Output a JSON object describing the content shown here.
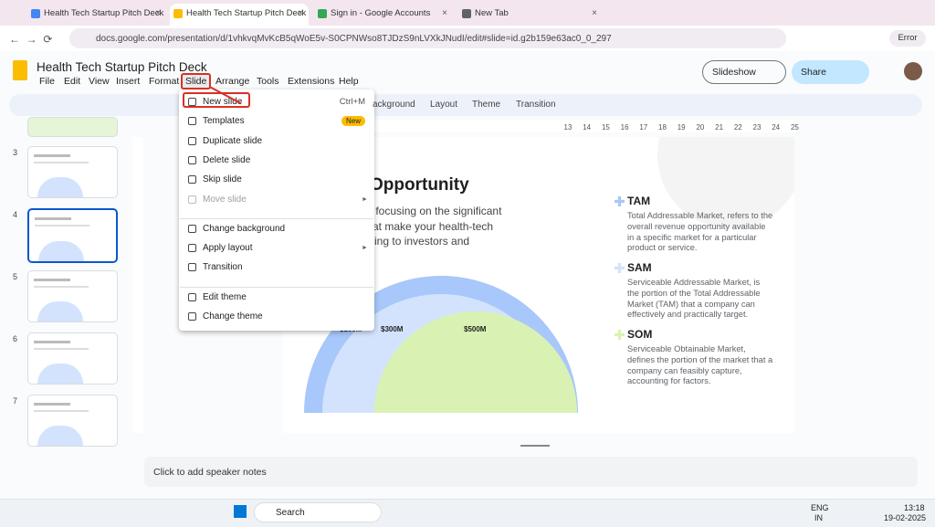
{
  "browser": {
    "tabs": [
      {
        "title": "Health Tech Startup Pitch Deck",
        "active": false,
        "color": "#4285f4"
      },
      {
        "title": "Health Tech Startup Pitch Deck",
        "active": true,
        "color": "#fbbc04"
      },
      {
        "title": "Sign in - Google Accounts",
        "active": false,
        "color": "#34a853"
      },
      {
        "title": "New Tab",
        "active": false,
        "color": "#5f6368"
      }
    ],
    "url": "docs.google.com/presentation/d/1vhkvqMvKcB5qWoE5v-S0CPNWso8TJDzS9nLVXkJNudI/edit#slide=id.g2b159e63ac0_0_297",
    "profile_status": "Error"
  },
  "header": {
    "title": "Health Tech Startup Pitch Deck",
    "menus": [
      "File",
      "Edit",
      "View",
      "Insert",
      "Format",
      "Slide",
      "Arrange",
      "Tools",
      "Extensions",
      "Help"
    ],
    "selected_menu": 5,
    "slideshow": "Slideshow",
    "share": "Share"
  },
  "toolbar": {
    "items": [
      "ackground",
      "Layout",
      "Theme",
      "Transition"
    ]
  },
  "ruler": {
    "labels": [
      13,
      14,
      15,
      16,
      17,
      18,
      19,
      20,
      21,
      22,
      23,
      24,
      25
    ]
  },
  "filmstrip": {
    "numbers": [
      3,
      4,
      5,
      6,
      7
    ],
    "active": 1
  },
  "slide_menu": {
    "items": [
      {
        "label": "New slide",
        "shortcut": "Ctrl+M",
        "highlighted": true
      },
      {
        "label": "Templates",
        "badge": "New"
      },
      {
        "label": "Duplicate slide"
      },
      {
        "label": "Delete slide"
      },
      {
        "label": "Skip slide"
      },
      {
        "label": "Move slide",
        "disabled": true,
        "submenu": true
      },
      {
        "label": "Change background",
        "section_start": true
      },
      {
        "label": "Apply layout",
        "submenu": true
      },
      {
        "label": "Transition"
      },
      {
        "label": "Edit theme",
        "section_start": true
      },
      {
        "label": "Change theme"
      }
    ]
  },
  "slide": {
    "title": "Opportunity",
    "body": [
      "e, focusing on the significant",
      "that make your health-tech",
      "elling to investors and"
    ],
    "chart_labels": [
      "$100M",
      "$300M",
      "$500M"
    ],
    "markets": [
      {
        "name": "TAM",
        "description": "Total Addressable Market, refers to the overall revenue opportunity available in a specific market for a particular product or service."
      },
      {
        "name": "SAM",
        "description": "Serviceable Addressable Market, is the portion of the Total Addressable Market (TAM) that a company can effectively and practically target."
      },
      {
        "name": "SOM",
        "description": "Serviceable Obtainable Market, defines the portion of the market that a company can feasibly capture, accounting for factors."
      }
    ]
  },
  "notes": {
    "placeholder": "Click to add speaker notes"
  },
  "taskbar": {
    "search": "Search",
    "language": "ENG",
    "region": "IN",
    "time": "13:18",
    "date": "19-02-2025"
  }
}
